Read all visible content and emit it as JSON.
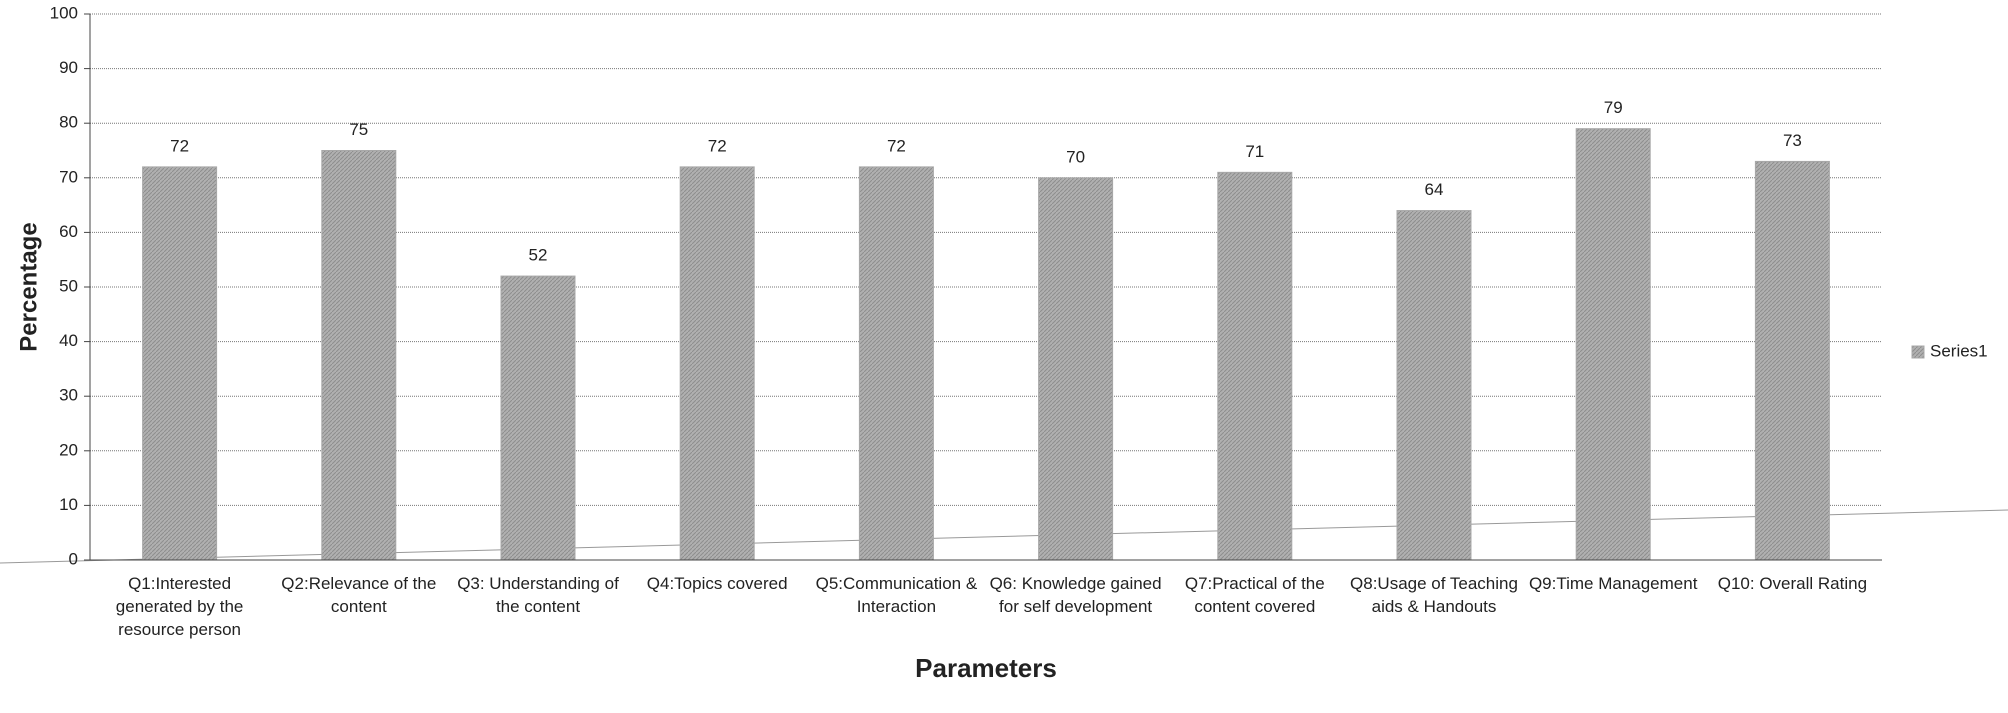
{
  "chart_data": {
    "type": "bar",
    "x_label": "Parameters",
    "y_label": "Percentage",
    "categories": [
      "Q1:Interested generated by the resource person",
      "Q2:Relevance of the content",
      "Q3: Understanding of the content",
      "Q4:Topics covered",
      "Q5:Communication & Interaction",
      "Q6: Knowledge gained for self development",
      "Q7:Practical of the content covered",
      "Q8:Usage of Teaching aids & Handouts",
      "Q9:Time Management",
      "Q10: Overall Rating"
    ],
    "series": [
      {
        "name": "Series1",
        "color": "#a8a8a8",
        "values": [
          72,
          75,
          52,
          72,
          72,
          70,
          71,
          64,
          79,
          73
        ]
      }
    ],
    "ylim": [
      0,
      100
    ],
    "yticks": [
      0,
      10,
      20,
      30,
      40,
      50,
      60,
      70,
      80,
      90,
      100
    ],
    "grid": true,
    "legend": "right"
  }
}
